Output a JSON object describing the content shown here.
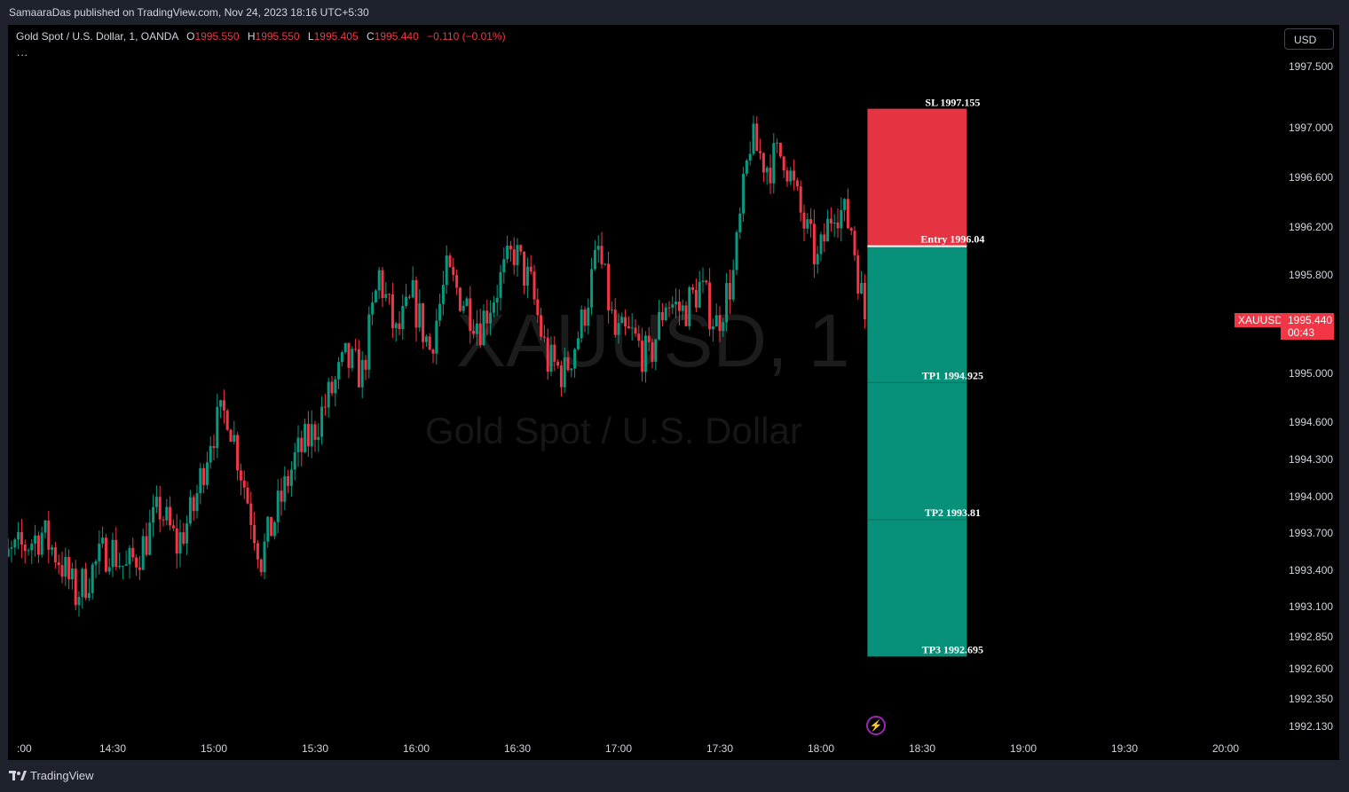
{
  "header": {
    "published": "SamaaraDas published on TradingView.com, Nov 24, 2023 18:16 UTC+5:30"
  },
  "legend": {
    "symbol": "Gold Spot / U.S. Dollar, 1, OANDA",
    "o_label": "O",
    "o": "1995.550",
    "h_label": "H",
    "h": "1995.550",
    "l_label": "L",
    "l": "1995.405",
    "c_label": "C",
    "c": "1995.440",
    "change": "−0.110 (−0.01%)",
    "more": "..."
  },
  "currency_button": "USD",
  "watermark": {
    "symbol": "XAUUSD, 1",
    "description": "Gold Spot / U.S. Dollar"
  },
  "price_tag": {
    "symbol": "XAUUSD",
    "price": "1995.440",
    "countdown": "00:43"
  },
  "footer": {
    "brand": "TradingView"
  },
  "icons": {
    "bolt": "lightning-icon",
    "logo": "tradingview-logo-icon"
  },
  "colors": {
    "up": "#089981",
    "down": "#f23645",
    "background": "#000000",
    "sl_zone": "#f23645",
    "tp_zone": "#089981"
  },
  "chart_data": {
    "type": "candlestick",
    "y_axis_ticks": [
      1997.5,
      1997.0,
      1996.6,
      1996.2,
      1995.8,
      1995.0,
      1994.6,
      1994.3,
      1994.0,
      1993.7,
      1993.4,
      1993.1,
      1992.85,
      1992.6,
      1992.35,
      1992.13
    ],
    "y_axis_labels": [
      "1997.500",
      "1997.000",
      "1996.600",
      "1996.200",
      "1995.800",
      "1995.000",
      "1994.600",
      "1994.300",
      "1994.000",
      "1993.700",
      "1993.400",
      "1993.100",
      "1992.850",
      "1992.600",
      "1992.350",
      "1992.130"
    ],
    "x_axis_labels": [
      ":00",
      "14:30",
      "15:00",
      "15:30",
      "16:00",
      "16:30",
      "17:00",
      "17:30",
      "18:00",
      "18:30",
      "19:00",
      "19:30",
      "20:00"
    ],
    "close_path": [
      [
        "13:54",
        1993.0
      ],
      [
        "13:59",
        1993.5
      ],
      [
        "14:04",
        1993.6
      ],
      [
        "14:09",
        1993.7
      ],
      [
        "14:14",
        1993.5
      ],
      [
        "14:19",
        1993.2
      ],
      [
        "14:24",
        1993.4
      ],
      [
        "14:29",
        1993.6
      ],
      [
        "14:34",
        1993.4
      ],
      [
        "14:39",
        1993.6
      ],
      [
        "14:44",
        1993.9
      ],
      [
        "14:49",
        1993.6
      ],
      [
        "14:54",
        1993.9
      ],
      [
        "14:59",
        1994.5
      ],
      [
        "15:04",
        1994.7
      ],
      [
        "15:09",
        1994.1
      ],
      [
        "15:14",
        1993.5
      ],
      [
        "15:19",
        1993.9
      ],
      [
        "15:24",
        1994.3
      ],
      [
        "15:29",
        1994.5
      ],
      [
        "15:34",
        1994.8
      ],
      [
        "15:39",
        1995.1
      ],
      [
        "15:44",
        1995.0
      ],
      [
        "15:49",
        1995.8
      ],
      [
        "15:54",
        1995.3
      ],
      [
        "15:59",
        1995.6
      ],
      [
        "16:04",
        1995.2
      ],
      [
        "16:09",
        1995.8
      ],
      [
        "16:14",
        1995.6
      ],
      [
        "16:19",
        1995.4
      ],
      [
        "16:24",
        1995.7
      ],
      [
        "16:29",
        1996.0
      ],
      [
        "16:34",
        1995.7
      ],
      [
        "16:39",
        1995.1
      ],
      [
        "16:44",
        1995.0
      ],
      [
        "16:49",
        1995.4
      ],
      [
        "16:54",
        1996.0
      ],
      [
        "16:59",
        1995.3
      ],
      [
        "17:04",
        1995.3
      ],
      [
        "17:09",
        1995.1
      ],
      [
        "17:14",
        1995.6
      ],
      [
        "17:19",
        1995.5
      ],
      [
        "17:24",
        1995.7
      ],
      [
        "17:29",
        1995.4
      ],
      [
        "17:34",
        1995.8
      ],
      [
        "17:39",
        1996.9
      ],
      [
        "17:44",
        1996.7
      ],
      [
        "17:49",
        1996.8
      ],
      [
        "17:54",
        1996.3
      ],
      [
        "17:59",
        1995.9
      ],
      [
        "18:04",
        1996.4
      ],
      [
        "18:09",
        1996.2
      ],
      [
        "18:13",
        1995.44
      ]
    ],
    "position_tool": {
      "type": "short",
      "sl": 1997.155,
      "entry": 1996.04,
      "tp1": 1994.925,
      "tp2": 1993.81,
      "tp3": 1992.695,
      "labels": {
        "sl": "SL 1997.155",
        "entry": "Entry 1996.04",
        "tp1": "TP1 1994.925",
        "tp2": "TP2 1993.81",
        "tp3": "TP3 1992.695"
      },
      "time_start": "18:13",
      "time_end": "18:43"
    }
  }
}
